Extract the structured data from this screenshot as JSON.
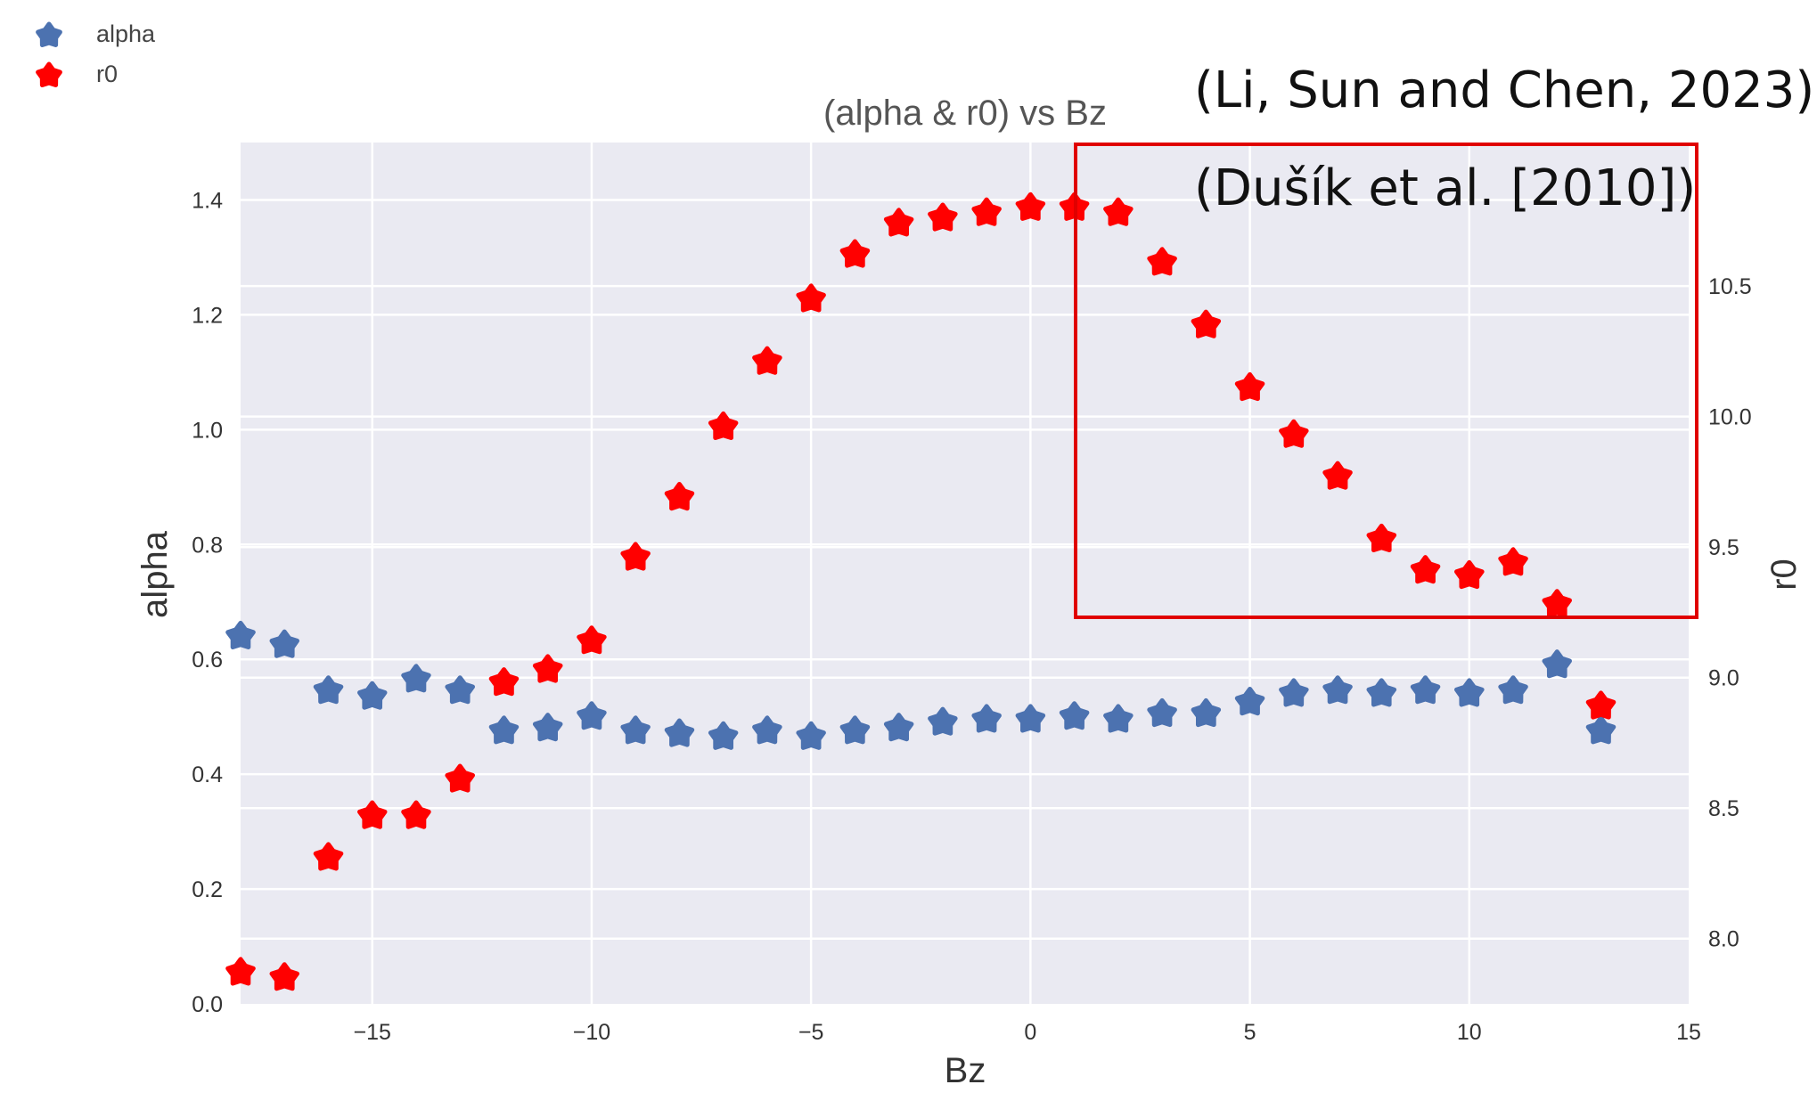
{
  "chart_data": {
    "type": "scatter",
    "title": "(alpha & r0) vs Bz",
    "xlabel": "Bz",
    "ylabel_left": "alpha",
    "ylabel_right": "r0",
    "xlim": [
      -18,
      15
    ],
    "ylim_left": [
      0.0,
      1.5
    ],
    "ylim_right": [
      7.75,
      11.05
    ],
    "x_ticks": [
      -15,
      -10,
      -5,
      0,
      5,
      10,
      15
    ],
    "x_tick_labels": [
      "−15",
      "−10",
      "−5",
      "0",
      "5",
      "10",
      "15"
    ],
    "y_ticks_left": [
      0.0,
      0.2,
      0.4,
      0.6,
      0.8,
      1.0,
      1.2,
      1.4
    ],
    "y_tick_labels_left": [
      "0.0",
      "0.2",
      "0.4",
      "0.6",
      "0.8",
      "1.0",
      "1.2",
      "1.4"
    ],
    "y_ticks_right": [
      8.0,
      8.5,
      9.0,
      9.5,
      10.0,
      10.5
    ],
    "y_tick_labels_right": [
      "8.0",
      "8.5",
      "9.0",
      "9.5",
      "10.0",
      "10.5"
    ],
    "grid": true,
    "legend_position": "top-left",
    "x": [
      -18,
      -17,
      -16,
      -15,
      -14,
      -13,
      -12,
      -11,
      -10,
      -9,
      -8,
      -7,
      -6,
      -5,
      -4,
      -3,
      -2,
      -1,
      0,
      1,
      2,
      3,
      4,
      5,
      6,
      7,
      8,
      9,
      10,
      11,
      12,
      13
    ],
    "series": [
      {
        "name": "alpha",
        "axis": "left",
        "color": "#4c72b0",
        "values": [
          0.64,
          0.625,
          0.545,
          0.535,
          0.565,
          0.545,
          0.475,
          0.48,
          0.5,
          0.475,
          0.47,
          0.465,
          0.475,
          0.465,
          0.475,
          0.48,
          0.49,
          0.495,
          0.495,
          0.5,
          0.495,
          0.505,
          0.505,
          0.525,
          0.54,
          0.545,
          0.54,
          0.545,
          0.54,
          0.545,
          0.59,
          0.475
        ]
      },
      {
        "name": "r0",
        "axis": "right",
        "color": "#ff0000",
        "values": [
          7.87,
          7.85,
          8.31,
          8.47,
          8.47,
          8.61,
          8.98,
          9.03,
          9.14,
          9.46,
          9.69,
          9.96,
          10.21,
          10.45,
          10.62,
          10.74,
          10.76,
          10.78,
          10.8,
          10.8,
          10.78,
          10.59,
          10.35,
          10.11,
          9.93,
          9.77,
          9.53,
          9.41,
          9.39,
          9.44,
          9.28,
          8.89
        ]
      }
    ]
  },
  "annotations": {
    "citation_1": "(Li, Sun and Chen, 2023)",
    "citation_2": "(Dušík et al. [2010])",
    "highlight_box_color": "#e00000"
  }
}
